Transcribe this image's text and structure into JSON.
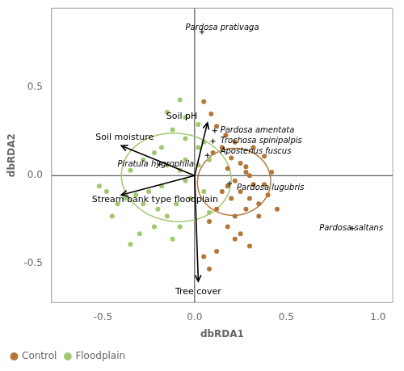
{
  "chart_data": {
    "type": "scatter",
    "xlabel": "dbRDA1",
    "ylabel": "dbRDA2",
    "xlim": [
      -0.78,
      1.08
    ],
    "ylim": [
      -0.72,
      0.95
    ],
    "xticks": [
      -0.5,
      {
        "value": 0.0,
        "label": "0.0"
      },
      0.5,
      {
        "value": 1.0,
        "label": "1.0"
      }
    ],
    "yticks": [
      -0.5,
      {
        "value": 0.0,
        "label": "0.0"
      },
      0.5
    ],
    "grid": false,
    "legend": "lower left",
    "series": [
      {
        "name": "Control",
        "color": "#b5763a",
        "values": [
          [
            0.05,
            0.42
          ],
          [
            0.09,
            0.35
          ],
          [
            0.12,
            0.28
          ],
          [
            0.17,
            0.23
          ],
          [
            0.22,
            0.19
          ],
          [
            0.15,
            0.16
          ],
          [
            0.1,
            0.13
          ],
          [
            0.2,
            0.1
          ],
          [
            0.25,
            0.07
          ],
          [
            0.18,
            0.04
          ],
          [
            0.28,
            0.02
          ],
          [
            0.3,
            0.0
          ],
          [
            0.22,
            -0.03
          ],
          [
            0.32,
            -0.05
          ],
          [
            0.38,
            -0.05
          ],
          [
            0.25,
            -0.09
          ],
          [
            0.2,
            -0.13
          ],
          [
            0.3,
            -0.13
          ],
          [
            0.35,
            -0.16
          ],
          [
            0.28,
            -0.19
          ],
          [
            0.22,
            -0.23
          ],
          [
            0.18,
            -0.29
          ],
          [
            0.25,
            -0.33
          ],
          [
            0.3,
            -0.4
          ],
          [
            0.12,
            -0.43
          ],
          [
            0.05,
            -0.46
          ],
          [
            0.08,
            -0.53
          ],
          [
            0.35,
            -0.23
          ],
          [
            0.4,
            -0.11
          ],
          [
            0.42,
            0.02
          ],
          [
            0.38,
            0.11
          ],
          [
            0.32,
            0.16
          ],
          [
            0.28,
            0.05
          ],
          [
            0.45,
            -0.19
          ],
          [
            0.18,
            -0.06
          ],
          [
            0.12,
            -0.19
          ],
          [
            0.08,
            -0.26
          ],
          [
            0.22,
            -0.36
          ],
          [
            0.15,
            -0.09
          ]
        ],
        "ellipse": {
          "cx": 0.215,
          "cy": -0.035,
          "width": 0.4,
          "height": 0.38,
          "angle": 12
        }
      },
      {
        "name": "Floodplain",
        "color": "#a0c870",
        "values": [
          [
            -0.08,
            0.43
          ],
          [
            -0.15,
            0.36
          ],
          [
            -0.05,
            0.33
          ],
          [
            0.02,
            0.29
          ],
          [
            -0.12,
            0.26
          ],
          [
            -0.05,
            0.21
          ],
          [
            0.05,
            0.19
          ],
          [
            -0.18,
            0.16
          ],
          [
            -0.22,
            0.13
          ],
          [
            -0.28,
            0.09
          ],
          [
            -0.15,
            0.06
          ],
          [
            -0.08,
            0.03
          ],
          [
            -0.05,
            -0.03
          ],
          [
            -0.18,
            -0.06
          ],
          [
            -0.25,
            -0.09
          ],
          [
            -0.32,
            -0.11
          ],
          [
            -0.38,
            -0.13
          ],
          [
            -0.28,
            -0.16
          ],
          [
            -0.2,
            -0.19
          ],
          [
            -0.15,
            -0.23
          ],
          [
            -0.22,
            -0.29
          ],
          [
            -0.3,
            -0.33
          ],
          [
            -0.35,
            -0.39
          ],
          [
            -0.12,
            -0.36
          ],
          [
            -0.08,
            -0.29
          ],
          [
            -0.42,
            -0.16
          ],
          [
            -0.48,
            -0.09
          ],
          [
            -0.05,
            0.09
          ],
          [
            0.02,
            0.06
          ],
          [
            -0.02,
            -0.13
          ],
          [
            0.05,
            -0.09
          ],
          [
            -0.1,
            -0.16
          ],
          [
            0.08,
            -0.21
          ],
          [
            -0.35,
            0.03
          ],
          [
            0.02,
            0.16
          ],
          [
            0.08,
            0.09
          ],
          [
            -0.45,
            -0.23
          ],
          [
            -0.52,
            -0.06
          ]
        ],
        "ellipse": {
          "cx": -0.1,
          "cy": -0.01,
          "width": 0.6,
          "height": 0.5,
          "angle": -8
        }
      }
    ],
    "arrows": [
      {
        "label": "Soil pH",
        "dx": 0.07,
        "dy": 0.3,
        "label_x": -0.07,
        "label_y": 0.335
      },
      {
        "label": "Soil moisture",
        "dx": -0.4,
        "dy": 0.17,
        "label_x": -0.54,
        "label_y": 0.215
      },
      {
        "label": "Stream bank type floodplain",
        "dx": -0.4,
        "dy": -0.11,
        "label_x": -0.56,
        "label_y": -0.135
      },
      {
        "label": "Tree cover",
        "dx": 0.02,
        "dy": -0.6,
        "label_x": 0.02,
        "label_y": -0.66
      }
    ],
    "species": [
      {
        "name": "Pardosa prativaga",
        "x": 0.04,
        "y": 0.815,
        "label_x": -0.05,
        "label_y": 0.84
      },
      {
        "name": "Pardosa amentata",
        "x": 0.11,
        "y": 0.255,
        "label_x": 0.14,
        "label_y": 0.255
      },
      {
        "name": "Trochosa spinipalpis",
        "x": 0.1,
        "y": 0.195,
        "label_x": 0.14,
        "label_y": 0.195
      },
      {
        "name": "Apostenus fuscus",
        "x": 0.07,
        "y": 0.115,
        "label_x": 0.14,
        "label_y": 0.135
      },
      {
        "name": "Piratula hygrophila",
        "x": -0.19,
        "y": 0.065,
        "label_x": -0.42,
        "label_y": 0.065
      },
      {
        "name": "Pardosa lugubris",
        "x": 0.19,
        "y": -0.045,
        "label_x": 0.23,
        "label_y": -0.068
      },
      {
        "name": "Pardosa saltans",
        "x": 0.86,
        "y": -0.3,
        "label_x": 0.68,
        "label_y": -0.3
      }
    ]
  }
}
